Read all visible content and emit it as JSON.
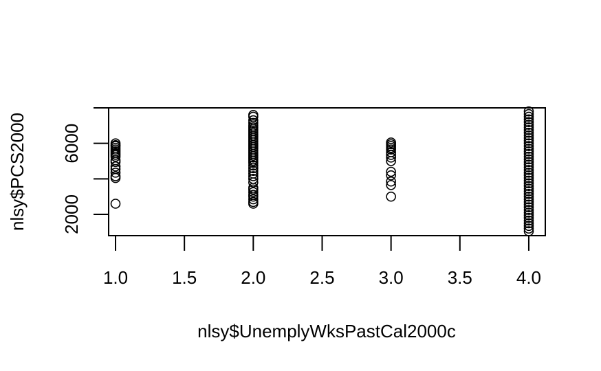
{
  "chart_data": {
    "type": "scatter",
    "title": "",
    "xlabel": "nlsy$UnemplyWksPastCal2000c",
    "ylabel": "nlsy$PCS2000",
    "xlim": [
      0.95,
      4.12
    ],
    "ylim": [
      800,
      8000
    ],
    "x_ticks": [
      "1.0",
      "1.5",
      "2.0",
      "2.5",
      "3.0",
      "3.5",
      "4.0"
    ],
    "x_tick_values": [
      1.0,
      1.5,
      2.0,
      2.5,
      3.0,
      3.5,
      4.0
    ],
    "y_ticks": [
      "2000",
      "6000"
    ],
    "y_tick_values": [
      2000,
      4000,
      6000,
      8000
    ],
    "y_tick_labels_shown": [
      2000,
      6000
    ],
    "points": [
      {
        "x": 1,
        "y": 6000
      },
      {
        "x": 1,
        "y": 5900
      },
      {
        "x": 1,
        "y": 5850
      },
      {
        "x": 1,
        "y": 5750
      },
      {
        "x": 1,
        "y": 5650
      },
      {
        "x": 1,
        "y": 5550
      },
      {
        "x": 1,
        "y": 5450
      },
      {
        "x": 1,
        "y": 5350
      },
      {
        "x": 1,
        "y": 5250
      },
      {
        "x": 1,
        "y": 5050
      },
      {
        "x": 1,
        "y": 4950
      },
      {
        "x": 1,
        "y": 4700
      },
      {
        "x": 1,
        "y": 4550
      },
      {
        "x": 1,
        "y": 4350
      },
      {
        "x": 1,
        "y": 4150
      },
      {
        "x": 1,
        "y": 4050
      },
      {
        "x": 1,
        "y": 2600
      },
      {
        "x": 2,
        "y": 7600
      },
      {
        "x": 2,
        "y": 7500
      },
      {
        "x": 2,
        "y": 7300
      },
      {
        "x": 2,
        "y": 7150
      },
      {
        "x": 2,
        "y": 7000
      },
      {
        "x": 2,
        "y": 6900
      },
      {
        "x": 2,
        "y": 6800
      },
      {
        "x": 2,
        "y": 6700
      },
      {
        "x": 2,
        "y": 6600
      },
      {
        "x": 2,
        "y": 6500
      },
      {
        "x": 2,
        "y": 6400
      },
      {
        "x": 2,
        "y": 6300
      },
      {
        "x": 2,
        "y": 6200
      },
      {
        "x": 2,
        "y": 6100
      },
      {
        "x": 2,
        "y": 6000
      },
      {
        "x": 2,
        "y": 5900
      },
      {
        "x": 2,
        "y": 5800
      },
      {
        "x": 2,
        "y": 5700
      },
      {
        "x": 2,
        "y": 5600
      },
      {
        "x": 2,
        "y": 5500
      },
      {
        "x": 2,
        "y": 5400
      },
      {
        "x": 2,
        "y": 5300
      },
      {
        "x": 2,
        "y": 5200
      },
      {
        "x": 2,
        "y": 5100
      },
      {
        "x": 2,
        "y": 5000
      },
      {
        "x": 2,
        "y": 4900
      },
      {
        "x": 2,
        "y": 4750
      },
      {
        "x": 2,
        "y": 4600
      },
      {
        "x": 2,
        "y": 4450
      },
      {
        "x": 2,
        "y": 4300
      },
      {
        "x": 2,
        "y": 4150
      },
      {
        "x": 2,
        "y": 4000
      },
      {
        "x": 2,
        "y": 3800
      },
      {
        "x": 2,
        "y": 3500
      },
      {
        "x": 2,
        "y": 3400
      },
      {
        "x": 2,
        "y": 3250
      },
      {
        "x": 2,
        "y": 3100
      },
      {
        "x": 2,
        "y": 3000
      },
      {
        "x": 2,
        "y": 2850
      },
      {
        "x": 2,
        "y": 2700
      },
      {
        "x": 2,
        "y": 2600
      },
      {
        "x": 3,
        "y": 6050
      },
      {
        "x": 3,
        "y": 5950
      },
      {
        "x": 3,
        "y": 5850
      },
      {
        "x": 3,
        "y": 5750
      },
      {
        "x": 3,
        "y": 5650
      },
      {
        "x": 3,
        "y": 5500
      },
      {
        "x": 3,
        "y": 5350
      },
      {
        "x": 3,
        "y": 5200
      },
      {
        "x": 3,
        "y": 5000
      },
      {
        "x": 3,
        "y": 4400
      },
      {
        "x": 3,
        "y": 4200
      },
      {
        "x": 3,
        "y": 3850
      },
      {
        "x": 3,
        "y": 3650
      },
      {
        "x": 3,
        "y": 3000
      },
      {
        "x": 4,
        "y": 7800
      },
      {
        "x": 4,
        "y": 7650
      },
      {
        "x": 4,
        "y": 7500
      },
      {
        "x": 4,
        "y": 7350
      },
      {
        "x": 4,
        "y": 7200
      },
      {
        "x": 4,
        "y": 7050
      },
      {
        "x": 4,
        "y": 6900
      },
      {
        "x": 4,
        "y": 6750
      },
      {
        "x": 4,
        "y": 6600
      },
      {
        "x": 4,
        "y": 6450
      },
      {
        "x": 4,
        "y": 6300
      },
      {
        "x": 4,
        "y": 6150
      },
      {
        "x": 4,
        "y": 6000
      },
      {
        "x": 4,
        "y": 5850
      },
      {
        "x": 4,
        "y": 5700
      },
      {
        "x": 4,
        "y": 5550
      },
      {
        "x": 4,
        "y": 5400
      },
      {
        "x": 4,
        "y": 5250
      },
      {
        "x": 4,
        "y": 5100
      },
      {
        "x": 4,
        "y": 4950
      },
      {
        "x": 4,
        "y": 4800
      },
      {
        "x": 4,
        "y": 4650
      },
      {
        "x": 4,
        "y": 4500
      },
      {
        "x": 4,
        "y": 4350
      },
      {
        "x": 4,
        "y": 4200
      },
      {
        "x": 4,
        "y": 4050
      },
      {
        "x": 4,
        "y": 3900
      },
      {
        "x": 4,
        "y": 3750
      },
      {
        "x": 4,
        "y": 3600
      },
      {
        "x": 4,
        "y": 3450
      },
      {
        "x": 4,
        "y": 3300
      },
      {
        "x": 4,
        "y": 3150
      },
      {
        "x": 4,
        "y": 3000
      },
      {
        "x": 4,
        "y": 2850
      },
      {
        "x": 4,
        "y": 2700
      },
      {
        "x": 4,
        "y": 2550
      },
      {
        "x": 4,
        "y": 2400
      },
      {
        "x": 4,
        "y": 2250
      },
      {
        "x": 4,
        "y": 2100
      },
      {
        "x": 4,
        "y": 1950
      },
      {
        "x": 4,
        "y": 1800
      },
      {
        "x": 4,
        "y": 1650
      },
      {
        "x": 4,
        "y": 1500
      },
      {
        "x": 4,
        "y": 1350
      },
      {
        "x": 4,
        "y": 1200
      },
      {
        "x": 4,
        "y": 1050
      }
    ],
    "marker": "open-circle",
    "grid": false,
    "legend": "none"
  }
}
